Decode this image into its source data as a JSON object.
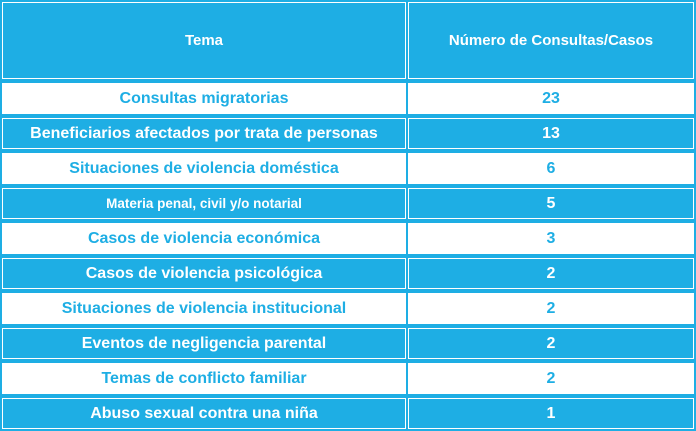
{
  "chart_data": {
    "type": "table",
    "columns": [
      "Tema",
      "Número de Consultas/Casos"
    ],
    "rows": [
      {
        "tema": "Consultas migratorias",
        "casos": "23"
      },
      {
        "tema": "Beneficiarios afectados por trata de personas",
        "casos": "13"
      },
      {
        "tema": "Situaciones de violencia doméstica",
        "casos": "6"
      },
      {
        "tema": "Materia penal, civil y/o notarial",
        "casos": "5"
      },
      {
        "tema": "Casos de violencia económica",
        "casos": "3"
      },
      {
        "tema": "Casos de violencia psicológica",
        "casos": "2"
      },
      {
        "tema": "Situaciones de violencia institucional",
        "casos": "2"
      },
      {
        "tema": "Eventos de negligencia parental",
        "casos": "2"
      },
      {
        "tema": "Temas de conflicto familiar",
        "casos": "2"
      },
      {
        "tema": "Abuso sexual contra una niña",
        "casos": "1"
      }
    ]
  },
  "colors": {
    "accent": "#1eaee4",
    "background": "#ffffff"
  }
}
